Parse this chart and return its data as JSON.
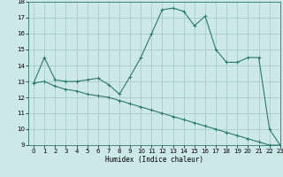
{
  "xlabel": "Humidex (Indice chaleur)",
  "bg_color": "#cce8e8",
  "grid_color": "#aacccc",
  "line_color": "#2a7a6a",
  "series1_x": [
    0,
    1,
    2,
    3,
    4,
    5,
    6,
    7,
    8,
    9,
    10,
    11,
    12,
    13,
    14,
    15,
    16,
    17,
    18,
    19,
    20,
    21,
    22,
    23
  ],
  "series1_y": [
    12.9,
    14.5,
    13.1,
    13.0,
    13.0,
    13.1,
    13.2,
    12.8,
    12.2,
    13.3,
    14.5,
    16.0,
    17.5,
    17.6,
    17.4,
    16.5,
    17.1,
    15.0,
    14.2,
    14.2,
    14.5,
    14.5,
    10.0,
    9.0
  ],
  "series2_x": [
    0,
    1,
    2,
    3,
    4,
    5,
    6,
    7,
    8,
    9,
    10,
    11,
    12,
    13,
    14,
    15,
    16,
    17,
    18,
    19,
    20,
    21,
    22,
    23
  ],
  "series2_y": [
    12.9,
    13.0,
    12.7,
    12.5,
    12.4,
    12.2,
    12.1,
    12.0,
    11.8,
    11.6,
    11.4,
    11.2,
    11.0,
    10.8,
    10.6,
    10.4,
    10.2,
    10.0,
    9.8,
    9.6,
    9.4,
    9.2,
    9.0,
    9.0
  ],
  "ylim": [
    9,
    18
  ],
  "xlim": [
    -0.5,
    23
  ],
  "yticks": [
    9,
    10,
    11,
    12,
    13,
    14,
    15,
    16,
    17,
    18
  ],
  "xticks": [
    0,
    1,
    2,
    3,
    4,
    5,
    6,
    7,
    8,
    9,
    10,
    11,
    12,
    13,
    14,
    15,
    16,
    17,
    18,
    19,
    20,
    21,
    22,
    23
  ],
  "marker": "+"
}
